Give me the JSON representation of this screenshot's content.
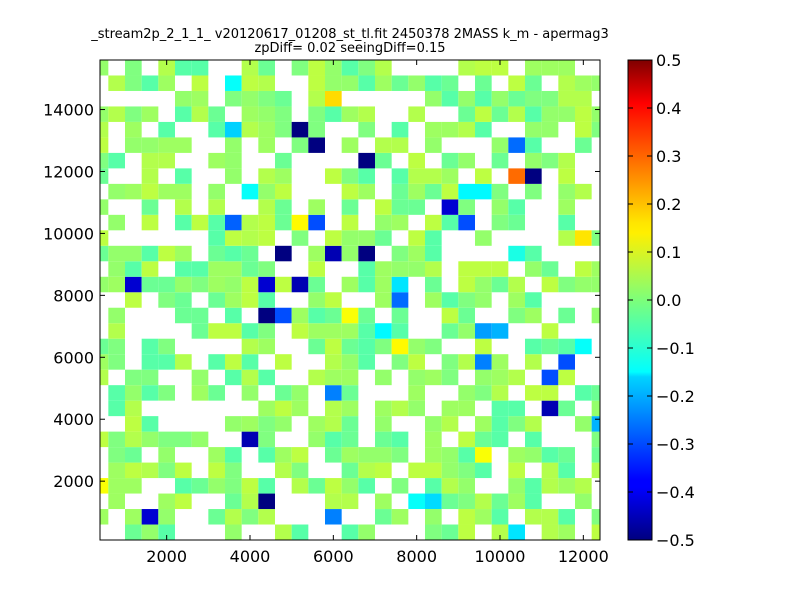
{
  "chart_data": {
    "type": "heatmap",
    "title": "_stream2p_2_1_1_ v20120617_01208_st_tl.fit 2450378 2MASS k_m - apermag3",
    "subtitle": "zpDiff= 0.02 seeingDiff=0.15",
    "xlabel": "",
    "ylabel": "",
    "xlim": [
      400,
      12400
    ],
    "ylim": [
      100,
      15600
    ],
    "x_ticks": [
      2000,
      4000,
      6000,
      8000,
      10000,
      12000
    ],
    "y_ticks": [
      2000,
      4000,
      6000,
      8000,
      10000,
      12000,
      14000
    ],
    "bin_size": [
      400,
      500
    ],
    "grid": false,
    "colormap": "jet",
    "colorbar": {
      "range": [
        -0.5,
        0.5
      ],
      "ticks": [
        0.5,
        0.4,
        0.3,
        0.2,
        0.1,
        0.0,
        -0.1,
        -0.2,
        -0.3,
        -0.4,
        -0.5
      ],
      "tick_labels": [
        "0.5",
        "0.4",
        "0.3",
        "0.2",
        "0.1",
        "0.0",
        "−0.1",
        "−0.2",
        "−0.3",
        "−0.4",
        "−0.5"
      ]
    },
    "fill_density": 0.62,
    "base_values": [
      -0.04,
      -0.02,
      0.0,
      0.02,
      0.03,
      0.05,
      0.06
    ],
    "cells": [
      {
        "x": 600,
        "y": 15350,
        "value": -0.13
      },
      {
        "x": 1400,
        "y": 15350,
        "value": -0.05
      },
      {
        "x": 1800,
        "y": 14850,
        "value": -0.12
      },
      {
        "x": 3600,
        "y": 14850,
        "value": -0.12
      },
      {
        "x": 1400,
        "y": 14350,
        "value": 0.14
      },
      {
        "x": 6000,
        "y": 14350,
        "value": 0.16
      },
      {
        "x": 3600,
        "y": 13350,
        "value": -0.17
      },
      {
        "x": 5200,
        "y": 13350,
        "value": -0.5
      },
      {
        "x": 5600,
        "y": 12850,
        "value": -0.5
      },
      {
        "x": 2200,
        "y": 12350,
        "value": 0.15
      },
      {
        "x": 6800,
        "y": 12350,
        "value": -0.5
      },
      {
        "x": 10400,
        "y": 12850,
        "value": -0.27
      },
      {
        "x": 10400,
        "y": 11850,
        "value": 0.27
      },
      {
        "x": 10800,
        "y": 11850,
        "value": -0.5
      },
      {
        "x": 9200,
        "y": 11350,
        "value": -0.13
      },
      {
        "x": 9600,
        "y": 11350,
        "value": -0.13
      },
      {
        "x": 4000,
        "y": 11350,
        "value": -0.12
      },
      {
        "x": 1800,
        "y": 10850,
        "value": -0.5
      },
      {
        "x": 2200,
        "y": 10850,
        "value": -0.42
      },
      {
        "x": 8800,
        "y": 10850,
        "value": -0.42
      },
      {
        "x": 9200,
        "y": 10350,
        "value": -0.3
      },
      {
        "x": 5200,
        "y": 10350,
        "value": 0.13
      },
      {
        "x": 5600,
        "y": 10350,
        "value": -0.3
      },
      {
        "x": 3600,
        "y": 10350,
        "value": -0.28
      },
      {
        "x": 12000,
        "y": 9850,
        "value": 0.15
      },
      {
        "x": 10400,
        "y": 9350,
        "value": -0.1
      },
      {
        "x": 4800,
        "y": 9350,
        "value": -0.5
      },
      {
        "x": 6000,
        "y": 9350,
        "value": -0.45
      },
      {
        "x": 6800,
        "y": 9350,
        "value": -0.5
      },
      {
        "x": 1200,
        "y": 8350,
        "value": -0.42
      },
      {
        "x": 4400,
        "y": 8350,
        "value": -0.42
      },
      {
        "x": 5200,
        "y": 8350,
        "value": -0.45
      },
      {
        "x": 7600,
        "y": 8350,
        "value": -0.15
      },
      {
        "x": 7600,
        "y": 7850,
        "value": -0.27
      },
      {
        "x": 4400,
        "y": 7350,
        "value": -0.5
      },
      {
        "x": 4800,
        "y": 7350,
        "value": -0.3
      },
      {
        "x": 6400,
        "y": 7350,
        "value": 0.12
      },
      {
        "x": 7200,
        "y": 6850,
        "value": -0.13
      },
      {
        "x": 9600,
        "y": 6850,
        "value": -0.22
      },
      {
        "x": 10000,
        "y": 6850,
        "value": -0.2
      },
      {
        "x": 7600,
        "y": 6350,
        "value": 0.13
      },
      {
        "x": 12000,
        "y": 6350,
        "value": -0.12
      },
      {
        "x": 9600,
        "y": 5850,
        "value": -0.25
      },
      {
        "x": 11600,
        "y": 5850,
        "value": -0.3
      },
      {
        "x": 11200,
        "y": 5350,
        "value": -0.3
      },
      {
        "x": 6000,
        "y": 4850,
        "value": -0.25
      },
      {
        "x": 11200,
        "y": 4350,
        "value": -0.45
      },
      {
        "x": 12400,
        "y": 3850,
        "value": -0.2
      },
      {
        "x": 4000,
        "y": 3350,
        "value": -0.45
      },
      {
        "x": 9600,
        "y": 2850,
        "value": 0.12
      },
      {
        "x": 400,
        "y": 1850,
        "value": 0.12
      },
      {
        "x": 4400,
        "y": 1350,
        "value": -0.5
      },
      {
        "x": 8000,
        "y": 1350,
        "value": -0.12
      },
      {
        "x": 8400,
        "y": 1350,
        "value": -0.16
      },
      {
        "x": 1600,
        "y": 850,
        "value": -0.42
      },
      {
        "x": 6000,
        "y": 850,
        "value": -0.25
      },
      {
        "x": 10400,
        "y": 350,
        "value": -0.15
      }
    ]
  }
}
